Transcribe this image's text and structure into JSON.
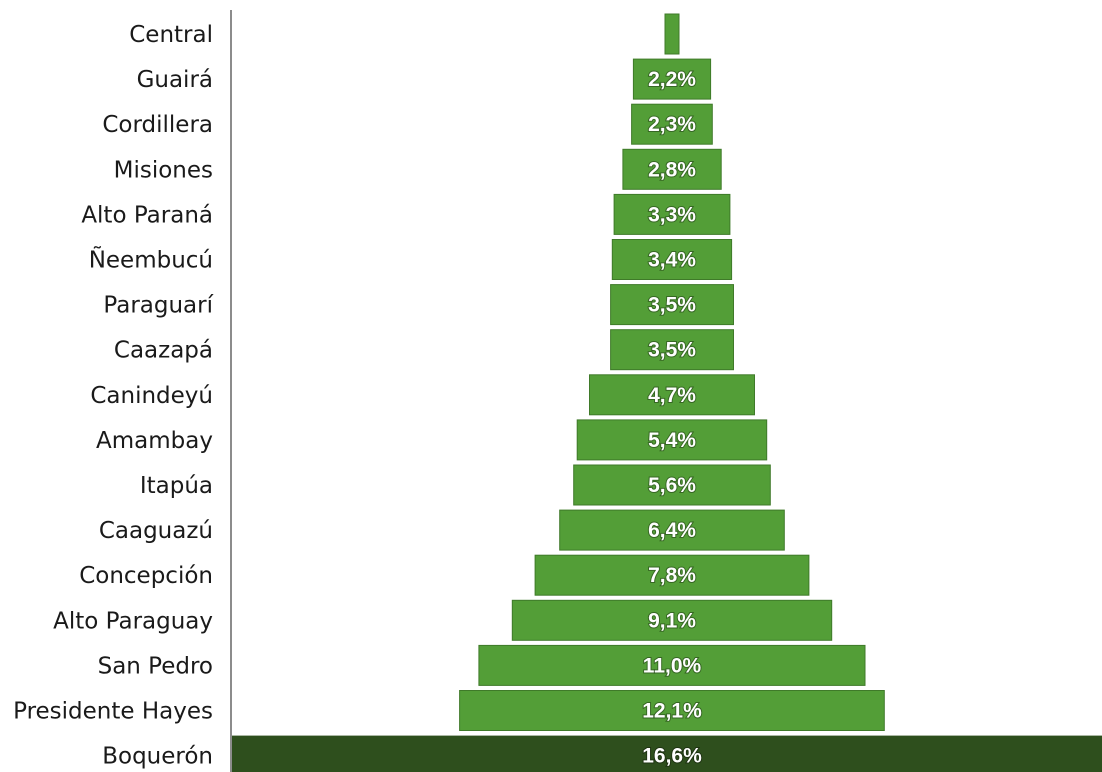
{
  "chart_data": {
    "type": "bar",
    "orientation": "horizontal",
    "layout": "centered funnel, sorted ascending",
    "title": "",
    "xlabel": "",
    "ylabel": "",
    "grid": false,
    "legend": "none",
    "categories": [
      "Central",
      "Guairá",
      "Cordillera",
      "Misiones",
      "Alto Paraná",
      "Ñeembucú",
      "Paraguarí",
      "Caazapá",
      "Canindeyú",
      "Amambay",
      "Itapúa",
      "Caaguazú",
      "Concepción",
      "Alto Paraguay",
      "San Pedro",
      "Presidente Hayes",
      "Boquerón"
    ],
    "values": [
      0.4,
      2.2,
      2.3,
      2.8,
      3.3,
      3.4,
      3.5,
      3.5,
      4.7,
      5.4,
      5.6,
      6.4,
      7.8,
      9.1,
      11.0,
      12.1,
      16.6
    ],
    "value_labels": [
      "",
      "2,2%",
      "2,3%",
      "2,8%",
      "3,3%",
      "3,4%",
      "3,5%",
      "3,5%",
      "4,7%",
      "5,4%",
      "5,6%",
      "6,4%",
      "7,8%",
      "9,1%",
      "11,0%",
      "12,1%",
      "16,6%"
    ],
    "highlight_category": "Boquerón",
    "colors": {
      "bar": "#539e37",
      "bar_border": "#3f7a29",
      "highlight": "#2e4f1d",
      "axis": "#8c8c8c",
      "label_text": "#ffffff",
      "category_text": "#1a1a1a"
    }
  }
}
